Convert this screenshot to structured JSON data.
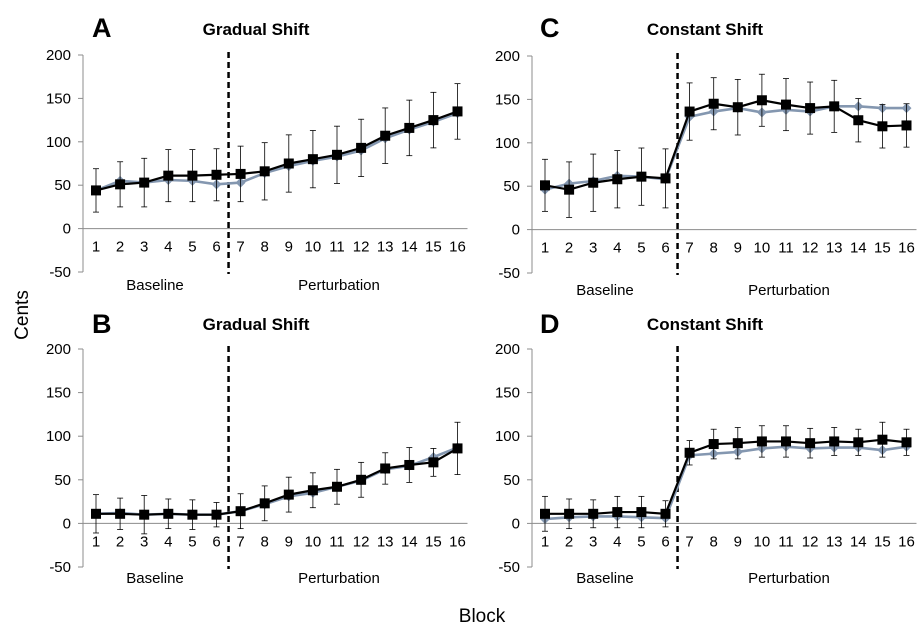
{
  "figure": {
    "ylabel": "Cents",
    "xlabel": "Block"
  },
  "chart_data": [
    {
      "panel": "A",
      "title": "Gradual Shift",
      "type": "line",
      "x": [
        1,
        2,
        3,
        4,
        5,
        6,
        7,
        8,
        9,
        10,
        11,
        12,
        13,
        14,
        15,
        16
      ],
      "ylim": [
        -50,
        200
      ],
      "yticks": [
        -50,
        0,
        50,
        100,
        150,
        200
      ],
      "phases": [
        "Baseline",
        "Perturbation"
      ],
      "divider_after_block": 6.5,
      "series": [
        {
          "color": "#8497b0",
          "marker": "diamond",
          "values": [
            44,
            55,
            53,
            56,
            55,
            51,
            53,
            64,
            72,
            78,
            83,
            90,
            104,
            114,
            123,
            133
          ]
        },
        {
          "color": "#000000",
          "marker": "square",
          "values": [
            44,
            51,
            53,
            61,
            61,
            62,
            63,
            66,
            75,
            80,
            85,
            93,
            107,
            116,
            125,
            135
          ],
          "error": [
            25,
            26,
            28,
            30,
            30,
            30,
            32,
            33,
            33,
            33,
            33,
            33,
            32,
            32,
            32,
            32
          ]
        }
      ]
    },
    {
      "panel": "B",
      "title": "Gradual Shift",
      "type": "line",
      "x": [
        1,
        2,
        3,
        4,
        5,
        6,
        7,
        8,
        9,
        10,
        11,
        12,
        13,
        14,
        15,
        16
      ],
      "ylim": [
        -50,
        200
      ],
      "yticks": [
        -50,
        0,
        50,
        100,
        150,
        200
      ],
      "phases": [
        "Baseline",
        "Perturbation"
      ],
      "divider_after_block": 6.5,
      "series": [
        {
          "color": "#8497b0",
          "marker": "diamond",
          "values": [
            11,
            12,
            10,
            11,
            10,
            10,
            14,
            22,
            31,
            35,
            42,
            49,
            62,
            66,
            76,
            87
          ]
        },
        {
          "color": "#000000",
          "marker": "square",
          "values": [
            11,
            11,
            10,
            11,
            10,
            10,
            14,
            23,
            33,
            38,
            42,
            50,
            63,
            67,
            70,
            86
          ],
          "error": [
            22,
            18,
            22,
            17,
            17,
            14,
            20,
            20,
            20,
            20,
            20,
            20,
            18,
            20,
            16,
            30
          ]
        }
      ]
    },
    {
      "panel": "C",
      "title": "Constant Shift",
      "type": "line",
      "x": [
        1,
        2,
        3,
        4,
        5,
        6,
        7,
        8,
        9,
        10,
        11,
        12,
        13,
        14,
        15,
        16
      ],
      "ylim": [
        -50,
        200
      ],
      "yticks": [
        -50,
        0,
        50,
        100,
        150,
        200
      ],
      "phases": [
        "Baseline",
        "Perturbation"
      ],
      "divider_after_block": 6.5,
      "series": [
        {
          "color": "#8497b0",
          "marker": "diamond",
          "values": [
            46,
            53,
            56,
            62,
            61,
            58,
            130,
            136,
            140,
            135,
            138,
            136,
            142,
            142,
            140,
            140
          ]
        },
        {
          "color": "#000000",
          "marker": "square",
          "values": [
            51,
            46,
            54,
            58,
            61,
            59,
            136,
            145,
            141,
            149,
            144,
            140,
            142,
            126,
            119,
            120
          ],
          "error": [
            30,
            32,
            33,
            33,
            33,
            34,
            33,
            30,
            32,
            30,
            30,
            30,
            30,
            25,
            25,
            25
          ]
        }
      ]
    },
    {
      "panel": "D",
      "title": "Constant Shift",
      "type": "line",
      "x": [
        1,
        2,
        3,
        4,
        5,
        6,
        7,
        8,
        9,
        10,
        11,
        12,
        13,
        14,
        15,
        16
      ],
      "ylim": [
        -50,
        200
      ],
      "yticks": [
        -50,
        0,
        50,
        100,
        150,
        200
      ],
      "phases": [
        "Baseline",
        "Perturbation"
      ],
      "divider_after_block": 6.5,
      "series": [
        {
          "color": "#8497b0",
          "marker": "diamond",
          "values": [
            5,
            7,
            8,
            8,
            7,
            6,
            78,
            80,
            82,
            86,
            88,
            86,
            87,
            87,
            84,
            88
          ]
        },
        {
          "color": "#000000",
          "marker": "square",
          "values": [
            11,
            11,
            11,
            13,
            13,
            11,
            81,
            91,
            92,
            94,
            94,
            92,
            94,
            93,
            96,
            93
          ],
          "error": [
            20,
            17,
            16,
            18,
            18,
            15,
            14,
            17,
            18,
            18,
            18,
            17,
            16,
            15,
            20,
            15
          ]
        }
      ]
    }
  ]
}
